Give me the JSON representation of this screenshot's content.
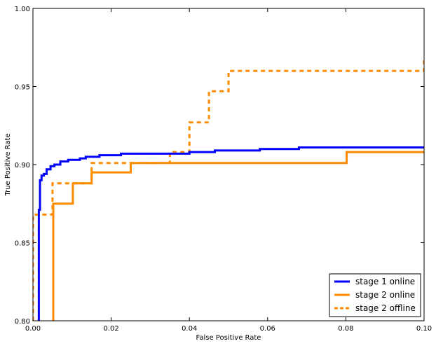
{
  "chart_data": {
    "type": "line",
    "xlabel": "False Positive Rate",
    "ylabel": "True Positive Rate",
    "xlim": [
      0.0,
      0.1
    ],
    "ylim": [
      0.8,
      1.0
    ],
    "x_ticks": [
      "0.00",
      "0.02",
      "0.04",
      "0.06",
      "0.08",
      "0.10"
    ],
    "x_tick_values": [
      0.0,
      0.02,
      0.04,
      0.06,
      0.08,
      0.1
    ],
    "y_ticks": [
      "0.80",
      "0.85",
      "0.90",
      "0.95",
      "1.00"
    ],
    "y_tick_values": [
      0.8,
      0.85,
      0.9,
      0.95,
      1.0
    ],
    "grid": false,
    "legend_position": "lower-right",
    "series": [
      {
        "name": "stage 1 online",
        "color": "#0000ff",
        "style": "solid",
        "x": [
          0.0015,
          0.0015,
          0.0018,
          0.0018,
          0.0022,
          0.0022,
          0.0028,
          0.0028,
          0.0035,
          0.0035,
          0.0045,
          0.0045,
          0.0055,
          0.0055,
          0.007,
          0.007,
          0.009,
          0.009,
          0.012,
          0.012,
          0.0135,
          0.0135,
          0.017,
          0.017,
          0.0225,
          0.0225,
          0.04,
          0.04,
          0.0465,
          0.0465,
          0.0495,
          0.0495,
          0.058,
          0.058,
          0.068,
          0.068,
          0.1
        ],
        "y": [
          0.8,
          0.871,
          0.871,
          0.89,
          0.89,
          0.893,
          0.893,
          0.894,
          0.894,
          0.897,
          0.897,
          0.899,
          0.899,
          0.9,
          0.9,
          0.902,
          0.902,
          0.903,
          0.903,
          0.904,
          0.904,
          0.905,
          0.905,
          0.906,
          0.906,
          0.907,
          0.907,
          0.908,
          0.908,
          0.909,
          0.909,
          0.909,
          0.909,
          0.91,
          0.91,
          0.911,
          0.911
        ]
      },
      {
        "name": "stage 2 online",
        "color": "#ff8c00",
        "style": "solid",
        "x": [
          0.0052,
          0.0052,
          0.0102,
          0.0102,
          0.015,
          0.015,
          0.025,
          0.025,
          0.0802,
          0.0802,
          0.1
        ],
        "y": [
          0.8,
          0.875,
          0.875,
          0.888,
          0.888,
          0.895,
          0.895,
          0.901,
          0.901,
          0.908,
          0.908
        ]
      },
      {
        "name": "stage 2 offline",
        "color": "#ff8c00",
        "style": "dashed",
        "x": [
          0.0,
          0.0,
          0.005,
          0.005,
          0.015,
          0.015,
          0.035,
          0.035,
          0.04,
          0.04,
          0.045,
          0.045,
          0.05,
          0.05,
          0.1,
          0.1
        ],
        "y": [
          0.8,
          0.868,
          0.868,
          0.888,
          0.888,
          0.901,
          0.901,
          0.908,
          0.908,
          0.927,
          0.927,
          0.947,
          0.947,
          0.96,
          0.96,
          0.967
        ]
      }
    ]
  }
}
